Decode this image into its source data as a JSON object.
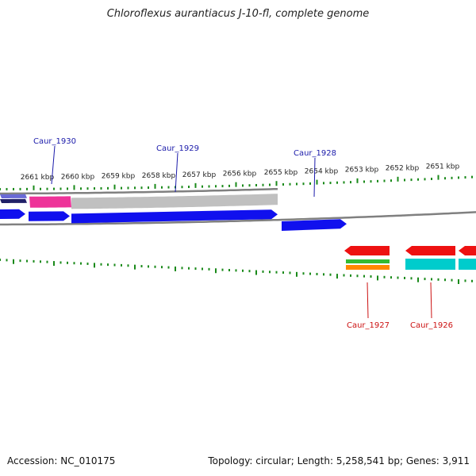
{
  "title": "Chloroflexus aurantiacus J-10-fl, complete genome",
  "footer": {
    "accession_label": "Accession:",
    "accession": "NC_010175",
    "topology_label": "Topology:",
    "topology": "circular",
    "length_label": "Length:",
    "length": "5,258,541 bp",
    "genes_label": "Genes:",
    "genes": "3,911"
  },
  "colors": {
    "forward_gene": "#1010ee",
    "reverse_gene": "#ee1111",
    "forward_label": "#1a1aaa",
    "reverse_label": "#cc1111",
    "tick": "#1a8a1a",
    "backbone": "#808080",
    "gray_band": "#c0c0c0",
    "pink_band": "#ee3399",
    "navy_band": "#202068",
    "green_band": "#33bb33",
    "orange_band": "#ff8800",
    "cyan_band": "#00cccc"
  },
  "scale": {
    "unit": "kbp",
    "ticks": [
      2661,
      2660,
      2659,
      2658,
      2657,
      2656,
      2655,
      2654,
      2653,
      2652,
      2651
    ]
  },
  "genes": [
    {
      "name": "Caur_1930",
      "strand": "forward"
    },
    {
      "name": "Caur_1929",
      "strand": "forward"
    },
    {
      "name": "Caur_1928",
      "strand": "forward"
    },
    {
      "name": "Caur_1927",
      "strand": "reverse"
    },
    {
      "name": "Caur_1926",
      "strand": "reverse"
    }
  ]
}
